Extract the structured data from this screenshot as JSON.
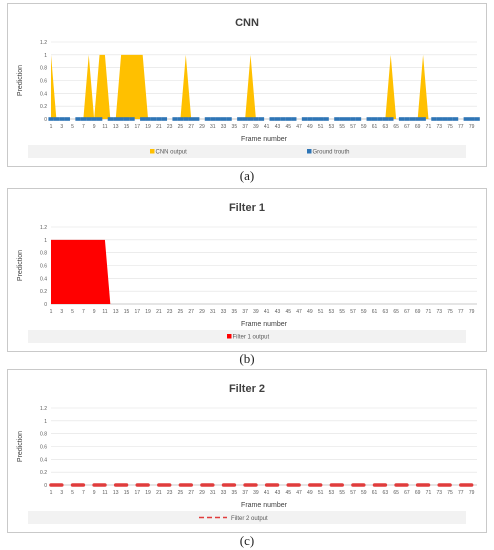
{
  "panels": [
    {
      "caption": "(a)",
      "chart_data": {
        "type": "area",
        "title": "CNN",
        "xlabel": "Frame number",
        "ylabel": "Prediction",
        "ylim": [
          0,
          1.2
        ],
        "yticks": [
          "0",
          "0.2",
          "0.4",
          "0.6",
          "0.8",
          "1",
          "1.2"
        ],
        "xticks": [
          "1",
          "3",
          "5",
          "7",
          "9",
          "11",
          "13",
          "15",
          "17",
          "19",
          "21",
          "23",
          "25",
          "27",
          "29",
          "31",
          "33",
          "35",
          "37",
          "39",
          "41",
          "43",
          "45",
          "47",
          "49",
          "51",
          "53",
          "55",
          "57",
          "59",
          "61",
          "63",
          "65",
          "67",
          "69",
          "71",
          "73",
          "75",
          "77",
          "79"
        ],
        "legend_position": "bottom",
        "grid": true,
        "series": [
          {
            "name": "CNN output",
            "color": "#ffc000",
            "style": "area",
            "x": [
              1,
              2,
              3,
              4,
              5,
              6,
              7,
              8,
              9,
              10,
              11,
              12,
              13,
              14,
              15,
              16,
              17,
              18,
              19,
              20,
              21,
              22,
              23,
              24,
              25,
              26,
              27,
              28,
              29,
              30,
              31,
              32,
              33,
              34,
              35,
              36,
              37,
              38,
              39,
              40,
              41,
              42,
              43,
              44,
              45,
              46,
              47,
              48,
              49,
              50,
              51,
              52,
              53,
              54,
              55,
              56,
              57,
              58,
              59,
              60,
              61,
              62,
              63,
              64,
              65,
              66,
              67,
              68,
              69,
              70,
              71,
              72,
              73,
              74,
              75,
              76,
              77,
              78,
              79,
              80
            ],
            "values": [
              1,
              0,
              0,
              0,
              0,
              0,
              0,
              1,
              0,
              1,
              1,
              0,
              0,
              1,
              1,
              1,
              1,
              1,
              0,
              0,
              0,
              0,
              0,
              0,
              0,
              1,
              0,
              0,
              0,
              0,
              0,
              0,
              0,
              0,
              0,
              0,
              0,
              1,
              0,
              0,
              0,
              0,
              0,
              0,
              0,
              0,
              0,
              0,
              0,
              0,
              0,
              0,
              0,
              0,
              0,
              0,
              0,
              0,
              0,
              0,
              0,
              0,
              0,
              1,
              0,
              0,
              0,
              0,
              0,
              1,
              0,
              0,
              0,
              0,
              0,
              0,
              0,
              0,
              0,
              0
            ]
          },
          {
            "name": "Ground trouth",
            "color": "#2e75b6",
            "style": "markers",
            "x": [
              1,
              2,
              3,
              4,
              5,
              6,
              7,
              8,
              9,
              10,
              11,
              12,
              13,
              14,
              15,
              16,
              17,
              18,
              19,
              20,
              21,
              22,
              23,
              24,
              25,
              26,
              27,
              28,
              29,
              30,
              31,
              32,
              33,
              34,
              35,
              36,
              37,
              38,
              39,
              40,
              41,
              42,
              43,
              44,
              45,
              46,
              47,
              48,
              49,
              50,
              51,
              52,
              53,
              54,
              55,
              56,
              57,
              58,
              59,
              60,
              61,
              62,
              63,
              64,
              65,
              66,
              67,
              68,
              69,
              70,
              71,
              72,
              73,
              74,
              75,
              76,
              77,
              78,
              79,
              80
            ],
            "values": [
              0,
              0,
              0,
              0,
              0,
              0,
              0,
              0,
              0,
              0,
              0,
              0,
              0,
              0,
              0,
              0,
              0,
              0,
              0,
              0,
              0,
              0,
              0,
              0,
              0,
              0,
              0,
              0,
              0,
              0,
              0,
              0,
              0,
              0,
              0,
              0,
              0,
              0,
              0,
              0,
              0,
              0,
              0,
              0,
              0,
              0,
              0,
              0,
              0,
              0,
              0,
              0,
              0,
              0,
              0,
              0,
              0,
              0,
              0,
              0,
              0,
              0,
              0,
              0,
              0,
              0,
              0,
              0,
              0,
              0,
              0,
              0,
              0,
              0,
              0,
              0,
              0,
              0,
              0,
              0
            ]
          }
        ]
      }
    },
    {
      "caption": "(b)",
      "chart_data": {
        "type": "area",
        "title": "Filter 1",
        "xlabel": "Frame number",
        "ylabel": "Prediction",
        "ylim": [
          0,
          1.2
        ],
        "yticks": [
          "0",
          "0.2",
          "0.4",
          "0.6",
          "0.8",
          "1",
          "1.2"
        ],
        "xticks": [
          "1",
          "3",
          "5",
          "7",
          "9",
          "11",
          "13",
          "15",
          "17",
          "19",
          "21",
          "23",
          "25",
          "27",
          "29",
          "31",
          "33",
          "35",
          "37",
          "39",
          "41",
          "43",
          "45",
          "47",
          "49",
          "51",
          "53",
          "55",
          "57",
          "59",
          "61",
          "63",
          "65",
          "67",
          "69",
          "71",
          "73",
          "75",
          "77",
          "79"
        ],
        "legend_position": "bottom",
        "grid": true,
        "series": [
          {
            "name": "Filter 1 output",
            "color": "#ff0000",
            "style": "area",
            "x": [
              1,
              2,
              3,
              4,
              5,
              6,
              7,
              8,
              9,
              10,
              11,
              12,
              13,
              14,
              15,
              16,
              17,
              18,
              19,
              20,
              21,
              22,
              23,
              24,
              25,
              26,
              27,
              28,
              29,
              30,
              31,
              32,
              33,
              34,
              35,
              36,
              37,
              38,
              39,
              40,
              41,
              42,
              43,
              44,
              45,
              46,
              47,
              48,
              49,
              50,
              51,
              52,
              53,
              54,
              55,
              56,
              57,
              58,
              59,
              60,
              61,
              62,
              63,
              64,
              65,
              66,
              67,
              68,
              69,
              70,
              71,
              72,
              73,
              74,
              75,
              76,
              77,
              78,
              79,
              80
            ],
            "values": [
              1,
              1,
              1,
              1,
              1,
              1,
              1,
              1,
              1,
              1,
              1,
              0,
              0,
              0,
              0,
              0,
              0,
              0,
              0,
              0,
              0,
              0,
              0,
              0,
              0,
              0,
              0,
              0,
              0,
              0,
              0,
              0,
              0,
              0,
              0,
              0,
              0,
              0,
              0,
              0,
              0,
              0,
              0,
              0,
              0,
              0,
              0,
              0,
              0,
              0,
              0,
              0,
              0,
              0,
              0,
              0,
              0,
              0,
              0,
              0,
              0,
              0,
              0,
              0,
              0,
              0,
              0,
              0,
              0,
              0,
              0,
              0,
              0,
              0,
              0,
              0,
              0,
              0,
              0,
              0
            ]
          }
        ]
      }
    },
    {
      "caption": "(c)",
      "chart_data": {
        "type": "line",
        "title": "Filter 2",
        "xlabel": "Frame number",
        "ylabel": "Prediction",
        "ylim": [
          0,
          1.2
        ],
        "yticks": [
          "0",
          "0.2",
          "0.4",
          "0.6",
          "0.8",
          "1",
          "1.2"
        ],
        "xticks": [
          "1",
          "3",
          "5",
          "7",
          "9",
          "11",
          "13",
          "15",
          "17",
          "19",
          "21",
          "23",
          "25",
          "27",
          "29",
          "31",
          "33",
          "35",
          "37",
          "39",
          "41",
          "43",
          "45",
          "47",
          "49",
          "51",
          "53",
          "55",
          "57",
          "59",
          "61",
          "63",
          "65",
          "67",
          "69",
          "71",
          "73",
          "75",
          "77",
          "79"
        ],
        "legend_position": "bottom",
        "grid": true,
        "series": [
          {
            "name": "Filter 2 output",
            "color": "#e03c3c",
            "style": "dashed",
            "x": [
              1,
              2,
              3,
              4,
              5,
              6,
              7,
              8,
              9,
              10,
              11,
              12,
              13,
              14,
              15,
              16,
              17,
              18,
              19,
              20,
              21,
              22,
              23,
              24,
              25,
              26,
              27,
              28,
              29,
              30,
              31,
              32,
              33,
              34,
              35,
              36,
              37,
              38,
              39,
              40,
              41,
              42,
              43,
              44,
              45,
              46,
              47,
              48,
              49,
              50,
              51,
              52,
              53,
              54,
              55,
              56,
              57,
              58,
              59,
              60,
              61,
              62,
              63,
              64,
              65,
              66,
              67,
              68,
              69,
              70,
              71,
              72,
              73,
              74,
              75,
              76,
              77,
              78,
              79,
              80
            ],
            "values": [
              0,
              0,
              0,
              0,
              0,
              0,
              0,
              0,
              0,
              0,
              0,
              0,
              0,
              0,
              0,
              0,
              0,
              0,
              0,
              0,
              0,
              0,
              0,
              0,
              0,
              0,
              0,
              0,
              0,
              0,
              0,
              0,
              0,
              0,
              0,
              0,
              0,
              0,
              0,
              0,
              0,
              0,
              0,
              0,
              0,
              0,
              0,
              0,
              0,
              0,
              0,
              0,
              0,
              0,
              0,
              0,
              0,
              0,
              0,
              0,
              0,
              0,
              0,
              0,
              0,
              0,
              0,
              0,
              0,
              0,
              0,
              0,
              0,
              0,
              0,
              0,
              0,
              0,
              0,
              0
            ]
          }
        ]
      }
    }
  ]
}
